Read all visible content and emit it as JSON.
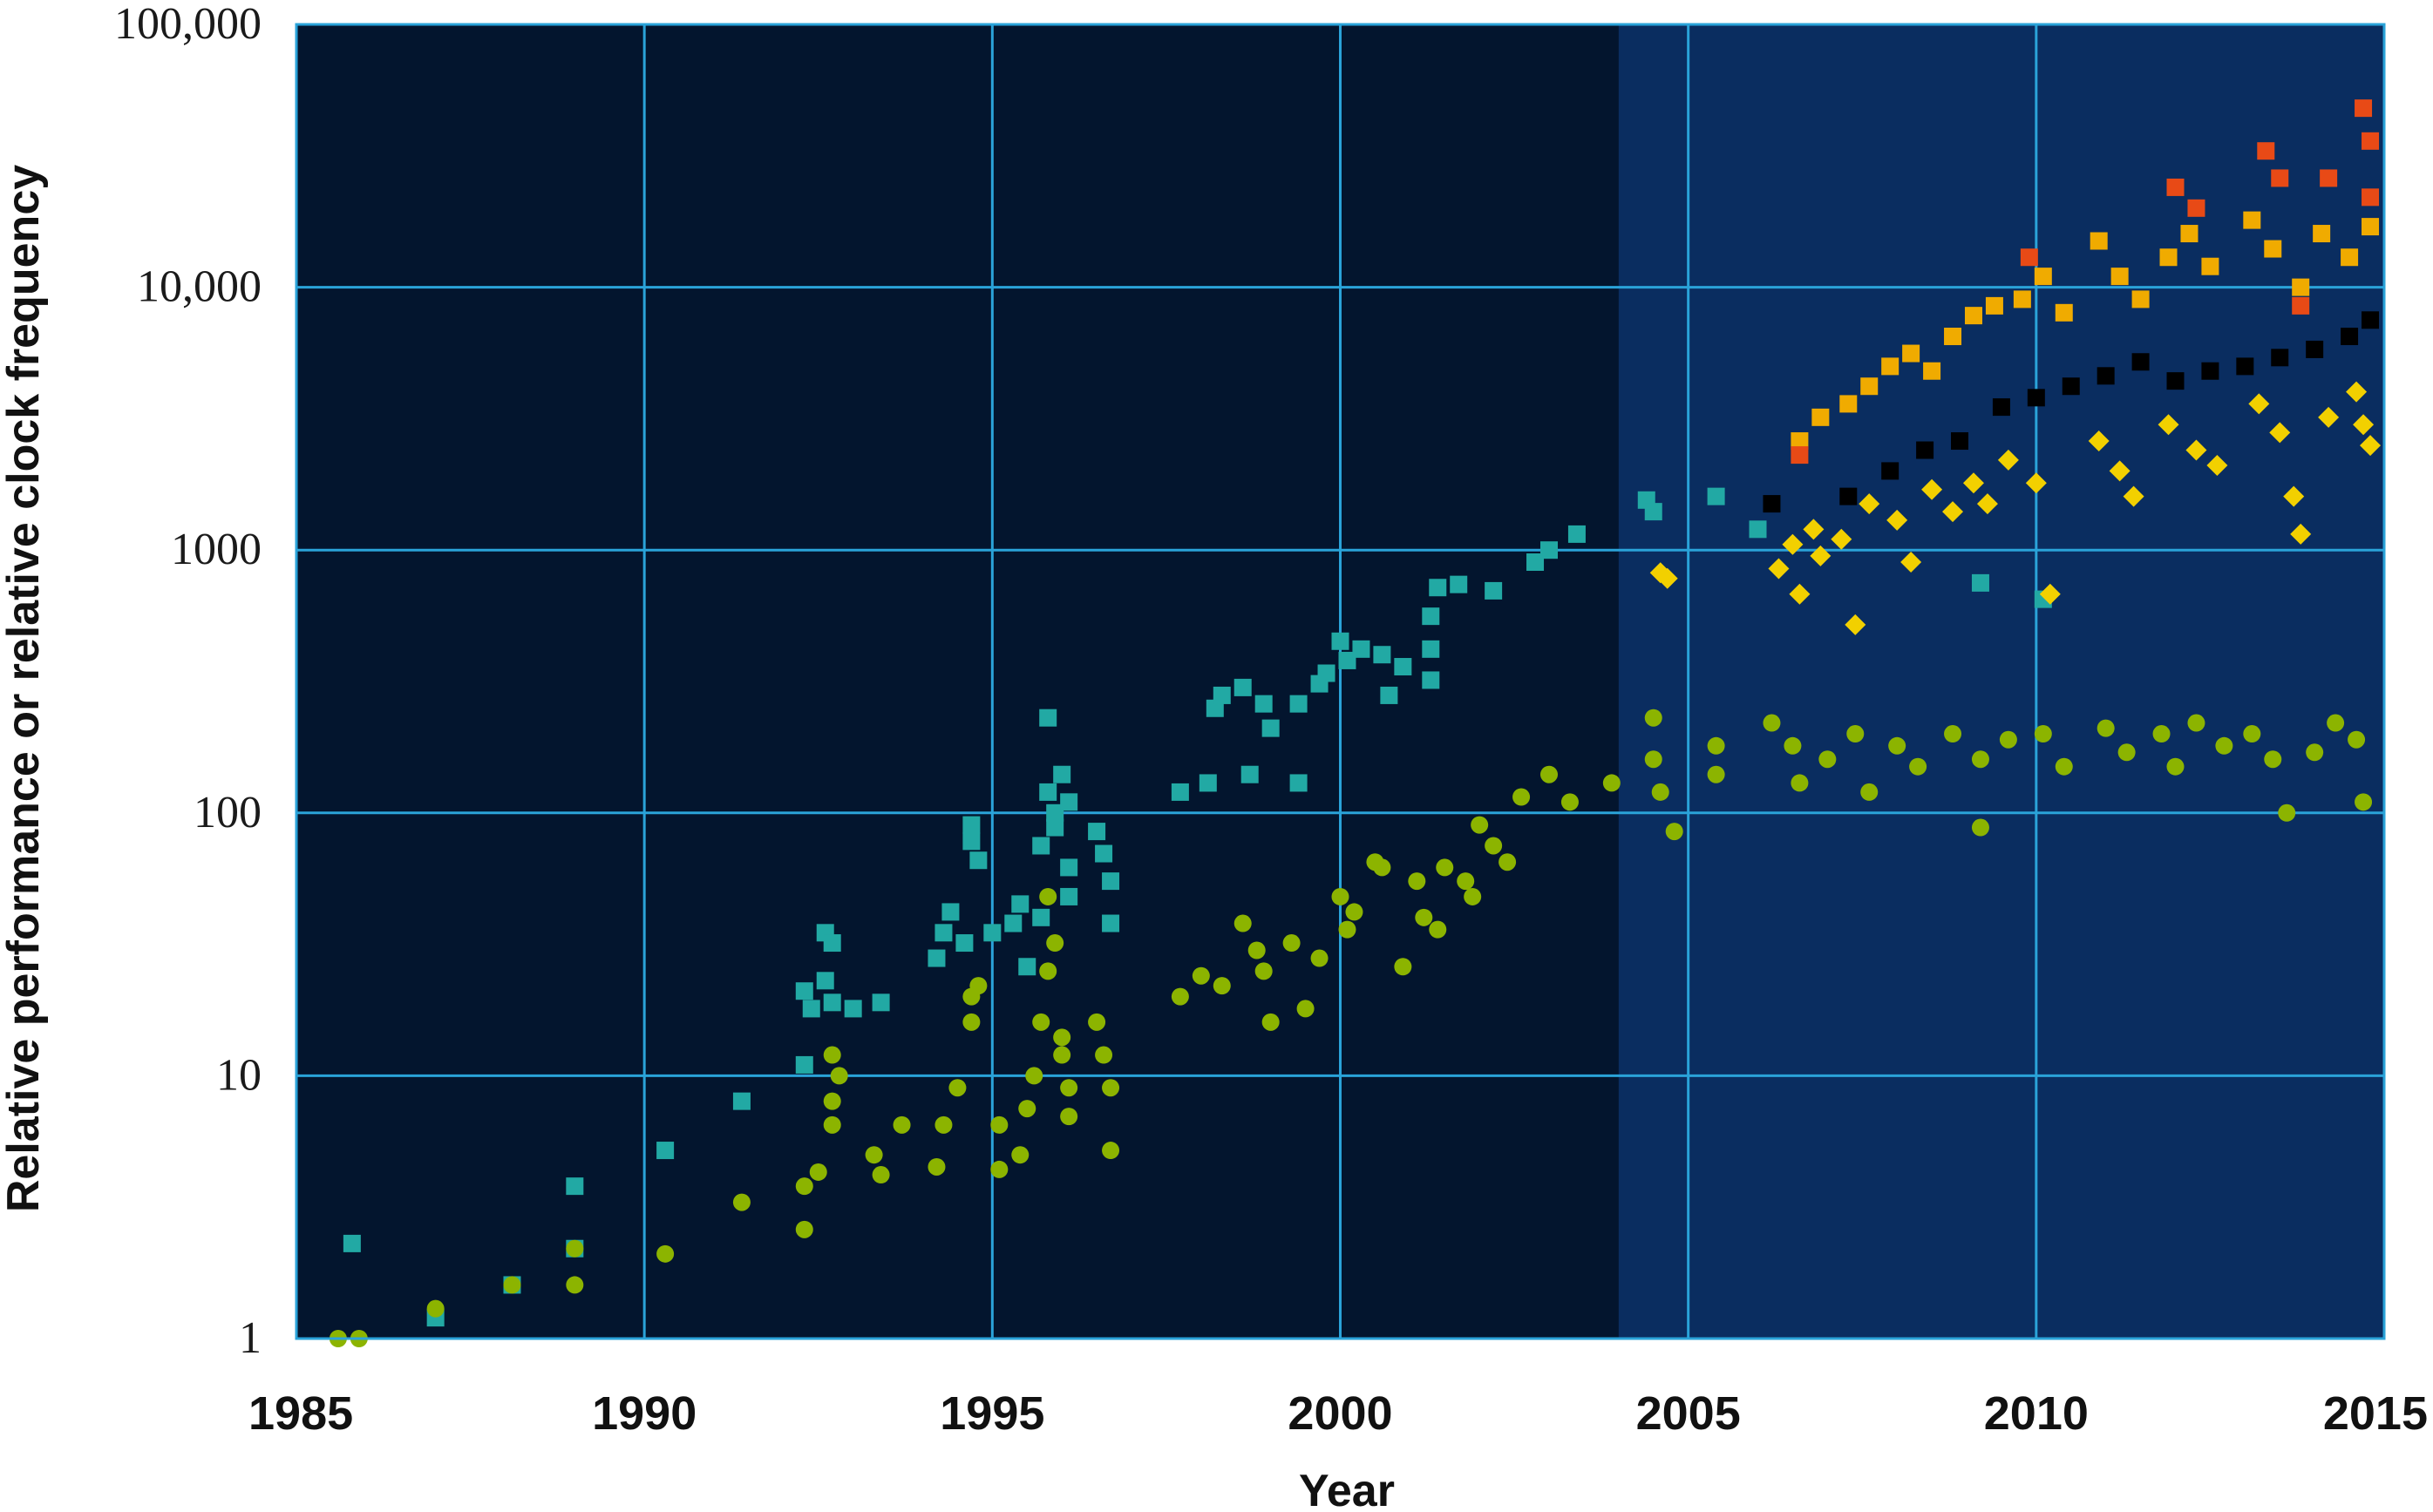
{
  "chart_data": {
    "type": "scatter",
    "title": "",
    "xlabel": "Year",
    "ylabel": "Relative performance or relative clock frequency",
    "xlim": [
      1985,
      2015
    ],
    "ylim": [
      1,
      100000
    ],
    "y_scale": "log",
    "grid": true,
    "legend": "none",
    "x_ticks": [
      1985,
      1990,
      1995,
      2000,
      2005,
      2010,
      2015
    ],
    "x_tick_labels": [
      "1985",
      "1990",
      "1995",
      "2000",
      "2005",
      "2010",
      "2015"
    ],
    "y_ticks": [
      1,
      10,
      100,
      1000,
      10000,
      100000
    ],
    "y_tick_labels": [
      "1",
      "10",
      "100",
      "1000",
      "10,000",
      "100,000"
    ],
    "shaded_region": {
      "from": 2004,
      "to": 2015,
      "color": "#0a2d60"
    },
    "colors": {
      "background": "#03152e",
      "grid": "#2aa3d9",
      "teal": "#22a9a4",
      "green": "#8cb400",
      "yellow": "#f2d000",
      "orange": "#f0ab00",
      "black": "#000000",
      "red": "#e84a16"
    },
    "series": [
      {
        "marker": "square",
        "color": "#22a9a4",
        "points": [
          [
            1985.8,
            2.3
          ],
          [
            1987.0,
            1.2
          ],
          [
            1988.1,
            1.6
          ],
          [
            1989.0,
            3.8
          ],
          [
            1989.0,
            2.2
          ],
          [
            1990.3,
            5.2
          ],
          [
            1991.4,
            8.0
          ],
          [
            1992.3,
            21
          ],
          [
            1992.4,
            18
          ],
          [
            1992.3,
            11
          ],
          [
            1992.6,
            35
          ],
          [
            1992.7,
            32
          ],
          [
            1992.6,
            23
          ],
          [
            1992.7,
            19
          ],
          [
            1993.0,
            18
          ],
          [
            1993.4,
            19
          ],
          [
            1994.2,
            28
          ],
          [
            1994.3,
            35
          ],
          [
            1994.4,
            42
          ],
          [
            1994.6,
            32
          ],
          [
            1994.7,
            90
          ],
          [
            1994.7,
            78
          ],
          [
            1994.8,
            66
          ],
          [
            1995.0,
            35
          ],
          [
            1995.3,
            38
          ],
          [
            1995.4,
            45
          ],
          [
            1995.5,
            26
          ],
          [
            1995.7,
            40
          ],
          [
            1995.7,
            75
          ],
          [
            1995.8,
            230
          ],
          [
            1995.8,
            120
          ],
          [
            1995.9,
            100
          ],
          [
            1995.9,
            88
          ],
          [
            1996.0,
            140
          ],
          [
            1996.1,
            110
          ],
          [
            1996.1,
            62
          ],
          [
            1996.1,
            48
          ],
          [
            1996.5,
            85
          ],
          [
            1996.6,
            70
          ],
          [
            1996.7,
            55
          ],
          [
            1996.7,
            38
          ],
          [
            1997.7,
            120
          ],
          [
            1998.1,
            130
          ],
          [
            1998.2,
            250
          ],
          [
            1998.3,
            280
          ],
          [
            1998.6,
            300
          ],
          [
            1998.7,
            140
          ],
          [
            1998.9,
            260
          ],
          [
            1999.0,
            210
          ],
          [
            1999.4,
            130
          ],
          [
            1999.4,
            260
          ],
          [
            1999.7,
            310
          ],
          [
            1999.8,
            340
          ],
          [
            2000.0,
            450
          ],
          [
            2000.1,
            380
          ],
          [
            2000.3,
            420
          ],
          [
            2000.6,
            400
          ],
          [
            2000.7,
            280
          ],
          [
            2000.9,
            360
          ],
          [
            2001.3,
            560
          ],
          [
            2001.3,
            420
          ],
          [
            2001.3,
            320
          ],
          [
            2001.4,
            720
          ],
          [
            2001.7,
            740
          ],
          [
            2002.2,
            700
          ],
          [
            2002.8,
            900
          ],
          [
            2003.0,
            1000
          ],
          [
            2003.4,
            1150
          ],
          [
            2004.4,
            1550
          ],
          [
            2004.5,
            1400
          ],
          [
            2005.4,
            1600
          ],
          [
            2006.0,
            1200
          ],
          [
            2009.2,
            750
          ],
          [
            2010.1,
            650
          ]
        ]
      },
      {
        "marker": "circle",
        "color": "#8cb400",
        "points": [
          [
            1985.6,
            1
          ],
          [
            1985.9,
            1
          ],
          [
            1987.0,
            1.3
          ],
          [
            1988.1,
            1.6
          ],
          [
            1989.0,
            2.2
          ],
          [
            1989.0,
            1.6
          ],
          [
            1990.3,
            2.1
          ],
          [
            1991.4,
            3.3
          ],
          [
            1992.3,
            2.6
          ],
          [
            1992.3,
            3.8
          ],
          [
            1992.5,
            4.3
          ],
          [
            1992.7,
            6.5
          ],
          [
            1992.7,
            8.0
          ],
          [
            1992.8,
            10
          ],
          [
            1992.7,
            12
          ],
          [
            1993.3,
            5.0
          ],
          [
            1993.4,
            4.2
          ],
          [
            1993.7,
            6.5
          ],
          [
            1994.2,
            4.5
          ],
          [
            1994.3,
            6.5
          ],
          [
            1994.5,
            9
          ],
          [
            1994.7,
            16
          ],
          [
            1994.7,
            20
          ],
          [
            1994.8,
            22
          ],
          [
            1995.1,
            6.5
          ],
          [
            1995.1,
            4.4
          ],
          [
            1995.4,
            5.0
          ],
          [
            1995.5,
            7.5
          ],
          [
            1995.6,
            10
          ],
          [
            1995.7,
            16
          ],
          [
            1995.8,
            25
          ],
          [
            1995.8,
            48
          ],
          [
            1995.9,
            32
          ],
          [
            1996.0,
            14
          ],
          [
            1996.0,
            12
          ],
          [
            1996.1,
            9
          ],
          [
            1996.1,
            7
          ],
          [
            1996.5,
            16
          ],
          [
            1996.6,
            12
          ],
          [
            1996.7,
            9
          ],
          [
            1996.7,
            5.2
          ],
          [
            1997.7,
            20
          ],
          [
            1998.0,
            24
          ],
          [
            1998.3,
            22
          ],
          [
            1998.6,
            38
          ],
          [
            1998.8,
            30
          ],
          [
            1998.9,
            25
          ],
          [
            1999.0,
            16
          ],
          [
            1999.3,
            32
          ],
          [
            1999.5,
            18
          ],
          [
            1999.7,
            28
          ],
          [
            2000.0,
            48
          ],
          [
            2000.1,
            36
          ],
          [
            2000.2,
            42
          ],
          [
            2000.5,
            65
          ],
          [
            2000.6,
            62
          ],
          [
            2000.9,
            26
          ],
          [
            2001.1,
            55
          ],
          [
            2001.2,
            40
          ],
          [
            2001.4,
            36
          ],
          [
            2001.5,
            62
          ],
          [
            2001.8,
            55
          ],
          [
            2001.9,
            48
          ],
          [
            2002.0,
            90
          ],
          [
            2002.2,
            75
          ],
          [
            2002.4,
            65
          ],
          [
            2002.6,
            115
          ],
          [
            2003.0,
            140
          ],
          [
            2003.3,
            110
          ],
          [
            2003.9,
            130
          ],
          [
            2004.5,
            230
          ],
          [
            2004.5,
            160
          ],
          [
            2004.6,
            120
          ],
          [
            2004.8,
            85
          ],
          [
            2005.4,
            180
          ],
          [
            2005.4,
            140
          ],
          [
            2006.2,
            220
          ],
          [
            2006.5,
            180
          ],
          [
            2006.6,
            130
          ],
          [
            2007.0,
            160
          ],
          [
            2007.4,
            200
          ],
          [
            2007.6,
            120
          ],
          [
            2008.0,
            180
          ],
          [
            2008.3,
            150
          ],
          [
            2008.8,
            200
          ],
          [
            2009.2,
            160
          ],
          [
            2009.2,
            88
          ],
          [
            2009.6,
            190
          ],
          [
            2010.1,
            200
          ],
          [
            2010.4,
            150
          ],
          [
            2011.0,
            210
          ],
          [
            2011.3,
            170
          ],
          [
            2011.8,
            200
          ],
          [
            2012.0,
            150
          ],
          [
            2012.3,
            220
          ],
          [
            2012.7,
            180
          ],
          [
            2013.1,
            200
          ],
          [
            2013.4,
            160
          ],
          [
            2013.6,
            100
          ],
          [
            2014.0,
            170
          ],
          [
            2014.3,
            220
          ],
          [
            2014.6,
            190
          ],
          [
            2014.7,
            110
          ]
        ]
      },
      {
        "marker": "diamond",
        "color": "#f2d000",
        "points": [
          [
            2004.6,
            820
          ],
          [
            2004.7,
            780
          ],
          [
            2006.3,
            850
          ],
          [
            2006.5,
            1050
          ],
          [
            2006.6,
            680
          ],
          [
            2006.8,
            1200
          ],
          [
            2006.9,
            950
          ],
          [
            2007.2,
            1100
          ],
          [
            2007.4,
            520
          ],
          [
            2007.6,
            1500
          ],
          [
            2008.0,
            1300
          ],
          [
            2008.2,
            900
          ],
          [
            2008.5,
            1700
          ],
          [
            2008.8,
            1400
          ],
          [
            2009.1,
            1800
          ],
          [
            2009.3,
            1500
          ],
          [
            2009.6,
            2200
          ],
          [
            2010.0,
            1800
          ],
          [
            2010.2,
            680
          ],
          [
            2010.9,
            2600
          ],
          [
            2011.2,
            2000
          ],
          [
            2011.4,
            1600
          ],
          [
            2011.9,
            3000
          ],
          [
            2012.3,
            2400
          ],
          [
            2012.6,
            2100
          ],
          [
            2013.2,
            3600
          ],
          [
            2013.5,
            2800
          ],
          [
            2013.7,
            1600
          ],
          [
            2013.8,
            1150
          ],
          [
            2014.2,
            3200
          ],
          [
            2014.6,
            4000
          ],
          [
            2014.7,
            3000
          ],
          [
            2014.8,
            2500
          ]
        ]
      },
      {
        "marker": "square",
        "color": "#000000",
        "points": [
          [
            2006.2,
            1500
          ],
          [
            2007.3,
            1600
          ],
          [
            2007.9,
            2000
          ],
          [
            2008.4,
            2400
          ],
          [
            2008.9,
            2600
          ],
          [
            2009.5,
            3500
          ],
          [
            2010.0,
            3800
          ],
          [
            2010.5,
            4200
          ],
          [
            2011.0,
            4600
          ],
          [
            2011.5,
            5200
          ],
          [
            2012.0,
            4400
          ],
          [
            2012.5,
            4800
          ],
          [
            2013.0,
            5000
          ],
          [
            2013.5,
            5400
          ],
          [
            2014.0,
            5800
          ],
          [
            2014.5,
            6500
          ],
          [
            2014.8,
            7500
          ]
        ]
      },
      {
        "marker": "square",
        "color": "#f0ab00",
        "points": [
          [
            2006.6,
            2600
          ],
          [
            2006.9,
            3200
          ],
          [
            2007.3,
            3600
          ],
          [
            2007.6,
            4200
          ],
          [
            2007.9,
            5000
          ],
          [
            2008.2,
            5600
          ],
          [
            2008.5,
            4800
          ],
          [
            2008.8,
            6500
          ],
          [
            2009.1,
            7800
          ],
          [
            2009.4,
            8500
          ],
          [
            2009.8,
            9000
          ],
          [
            2010.1,
            11000
          ],
          [
            2010.4,
            8000
          ],
          [
            2010.9,
            15000
          ],
          [
            2011.2,
            11000
          ],
          [
            2011.5,
            9000
          ],
          [
            2011.9,
            13000
          ],
          [
            2012.2,
            16000
          ],
          [
            2012.5,
            12000
          ],
          [
            2013.1,
            18000
          ],
          [
            2013.4,
            14000
          ],
          [
            2013.8,
            10000
          ],
          [
            2014.1,
            16000
          ],
          [
            2014.5,
            13000
          ],
          [
            2014.8,
            17000
          ]
        ]
      },
      {
        "marker": "square",
        "color": "#e84a16",
        "points": [
          [
            2006.6,
            2300
          ],
          [
            2009.9,
            13000
          ],
          [
            2012.0,
            24000
          ],
          [
            2012.3,
            20000
          ],
          [
            2013.3,
            33000
          ],
          [
            2013.5,
            26000
          ],
          [
            2013.8,
            8500
          ],
          [
            2014.2,
            26000
          ],
          [
            2014.7,
            48000
          ],
          [
            2014.8,
            36000
          ],
          [
            2014.8,
            22000
          ]
        ]
      }
    ]
  }
}
